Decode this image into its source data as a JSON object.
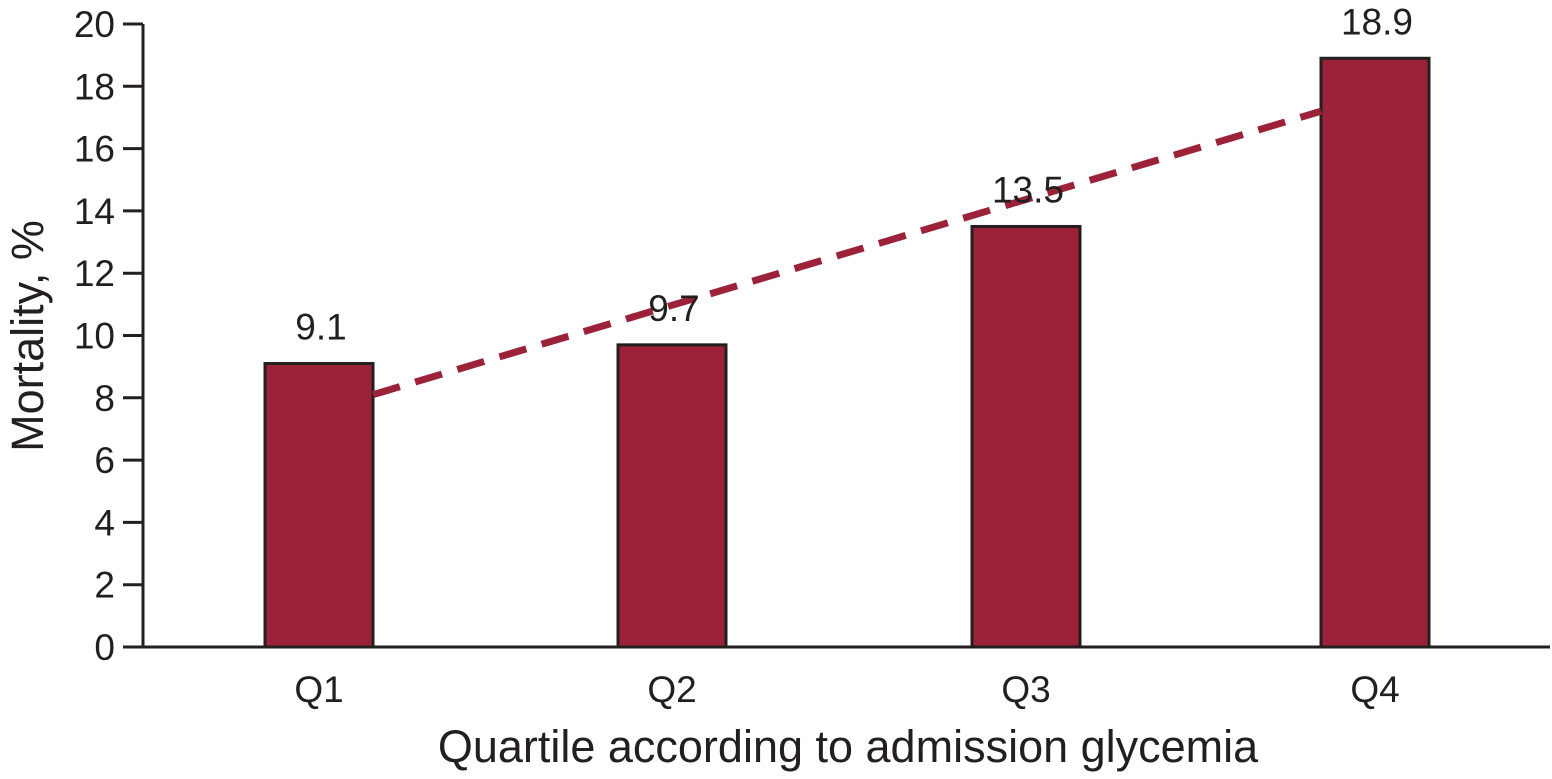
{
  "chart_data": {
    "type": "bar",
    "categories": [
      "Q1",
      "Q2",
      "Q3",
      "Q4"
    ],
    "values": [
      9.1,
      9.7,
      13.5,
      18.9
    ],
    "data_labels": [
      "9.1",
      "9.7",
      "13.5",
      "18.9"
    ],
    "trendline": {
      "style": "dashed",
      "start_y": 8.1,
      "end_y": 17.2
    },
    "title": "",
    "xlabel": "Quartile according to admission glycemia",
    "ylabel": "Mortality, %",
    "ylim": [
      0,
      20
    ],
    "yticks": [
      0,
      2,
      4,
      6,
      8,
      10,
      12,
      14,
      16,
      18,
      20
    ],
    "grid": false,
    "legend": "none",
    "colors": {
      "bar_fill": "#9b2239",
      "bar_stroke": "#231f20",
      "trendline": "#9b2239",
      "axis": "#231f20",
      "text": "#231f20"
    }
  }
}
